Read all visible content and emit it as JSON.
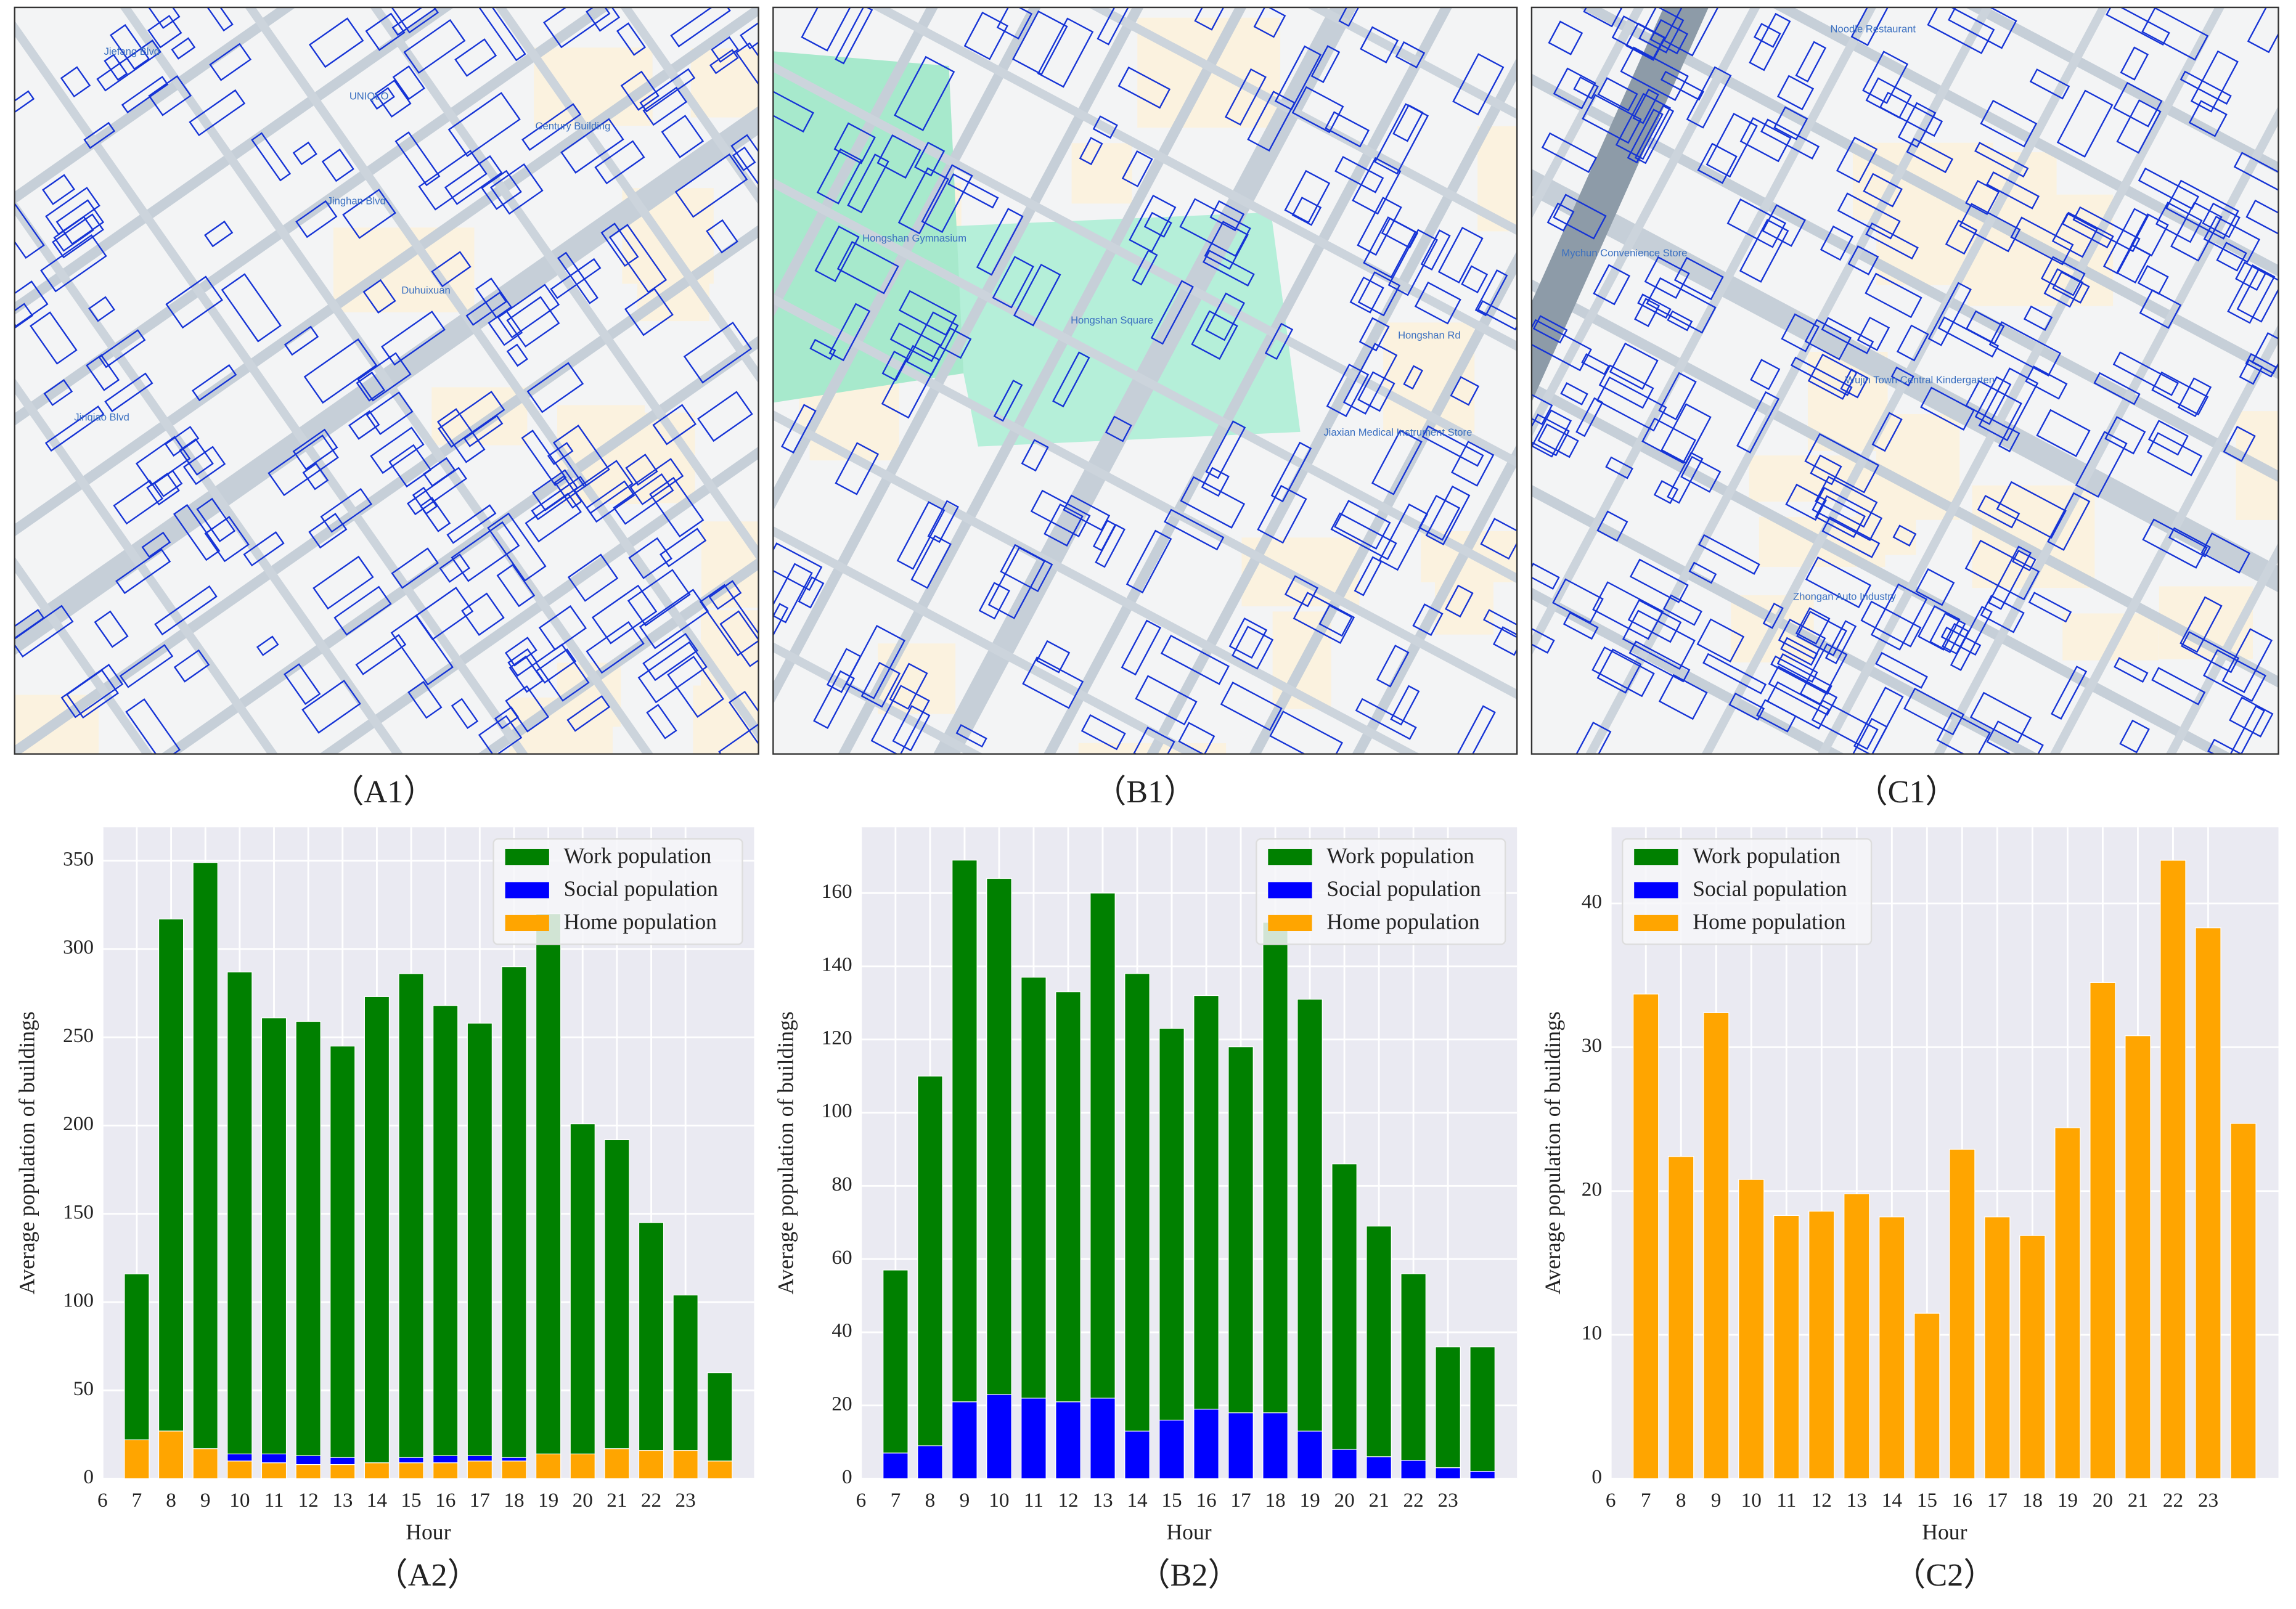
{
  "panels": [
    "（A1）",
    "（B1）",
    "（C1）",
    "（A2）",
    "（B2）",
    "（C2）"
  ],
  "maps": [
    {
      "labels": [
        "UNIQLO",
        "Jiefang Blvd",
        "Jinqiao Blvd",
        "Century Building",
        "Duhuixuan",
        "Jinghan Blvd"
      ]
    },
    {
      "labels": [
        "Hongshan Gymnasium",
        "Hongshan Square",
        "Hongshan Rd",
        "Jiaxian Medical Instrument Store"
      ]
    },
    {
      "labels": [
        "Mychun Convenience Store",
        "Noodle Restaurant",
        "Wujin Town Central Kindergarten",
        "Zhongan Auto Industry"
      ]
    }
  ],
  "chart_data": [
    {
      "type": "bar",
      "stacked": true,
      "xlabel": "Hour",
      "ylabel": "Average population of buildings",
      "x": [
        7,
        8,
        9,
        10,
        11,
        12,
        13,
        14,
        15,
        16,
        17,
        18,
        19,
        20,
        21,
        22,
        23,
        24
      ],
      "xlim": [
        6,
        25
      ],
      "xticks": [
        6,
        7,
        8,
        9,
        10,
        11,
        12,
        13,
        14,
        15,
        16,
        17,
        18,
        19,
        20,
        21,
        22,
        23
      ],
      "ylim": [
        0,
        369
      ],
      "yticks": [
        0,
        50,
        100,
        150,
        200,
        250,
        300,
        350
      ],
      "grid": true,
      "legend": "upper right",
      "series": [
        {
          "name": "Work population",
          "color": "#008000",
          "values": [
            94,
            290,
            332,
            273,
            247,
            246,
            233,
            264,
            274,
            255,
            245,
            278,
            306,
            187,
            175,
            129,
            88,
            50
          ]
        },
        {
          "name": "Social population",
          "color": "#0000ff",
          "values": [
            0,
            0,
            0,
            4,
            5,
            5,
            4,
            0,
            3,
            4,
            3,
            2,
            0,
            0,
            0,
            0,
            0,
            0
          ]
        },
        {
          "name": "Home population",
          "color": "#ffa500",
          "values": [
            22,
            27,
            17,
            10,
            9,
            8,
            8,
            9,
            9,
            9,
            10,
            10,
            14,
            14,
            17,
            16,
            16,
            10
          ]
        }
      ]
    },
    {
      "type": "bar",
      "stacked": true,
      "xlabel": "Hour",
      "ylabel": "Average population of buildings",
      "x": [
        7,
        8,
        9,
        10,
        11,
        12,
        13,
        14,
        15,
        16,
        17,
        18,
        19,
        20,
        21,
        22,
        23,
        24
      ],
      "xlim": [
        6,
        25
      ],
      "xticks": [
        6,
        7,
        8,
        9,
        10,
        11,
        12,
        13,
        14,
        15,
        16,
        17,
        18,
        19,
        20,
        21,
        22,
        23
      ],
      "ylim": [
        0,
        178
      ],
      "yticks": [
        0,
        20,
        40,
        60,
        80,
        100,
        120,
        140,
        160
      ],
      "grid": true,
      "legend": "upper right",
      "series": [
        {
          "name": "Work population",
          "color": "#008000",
          "values": [
            50,
            101,
            148,
            141,
            115,
            112,
            138,
            125,
            107,
            113,
            100,
            134,
            118,
            78,
            63,
            51,
            33,
            34
          ]
        },
        {
          "name": "Social population",
          "color": "#0000ff",
          "values": [
            7,
            9,
            21,
            23,
            22,
            21,
            22,
            13,
            16,
            19,
            18,
            18,
            13,
            8,
            6,
            5,
            3,
            2
          ]
        },
        {
          "name": "Home population",
          "color": "#ffa500",
          "values": [
            0,
            0,
            0,
            0,
            0,
            0,
            0,
            0,
            0,
            0,
            0,
            0,
            0,
            0,
            0,
            0,
            0,
            0
          ]
        }
      ]
    },
    {
      "type": "bar",
      "stacked": true,
      "xlabel": "Hour",
      "ylabel": "Average population of buildings",
      "x": [
        7,
        8,
        9,
        10,
        11,
        12,
        13,
        14,
        15,
        16,
        17,
        18,
        19,
        20,
        21,
        22,
        23,
        24
      ],
      "xlim": [
        6,
        25
      ],
      "xticks": [
        6,
        7,
        8,
        9,
        10,
        11,
        12,
        13,
        14,
        15,
        16,
        17,
        18,
        19,
        20,
        21,
        22,
        23
      ],
      "ylim": [
        0,
        45.3
      ],
      "yticks": [
        0,
        10,
        20,
        30,
        40
      ],
      "grid": true,
      "legend": "upper left",
      "series": [
        {
          "name": "Work population",
          "color": "#008000",
          "values": [
            0,
            0,
            0,
            0,
            0,
            0,
            0,
            0,
            0,
            0,
            0,
            0,
            0,
            0,
            0,
            0,
            0,
            0
          ]
        },
        {
          "name": "Social population",
          "color": "#0000ff",
          "values": [
            0,
            0,
            0,
            0,
            0,
            0,
            0,
            0,
            0,
            0,
            0,
            0,
            0,
            0,
            0,
            0,
            0,
            0
          ]
        },
        {
          "name": "Home population",
          "color": "#ffa500",
          "values": [
            33.7,
            22.4,
            32.4,
            20.8,
            18.3,
            18.6,
            19.8,
            18.2,
            11.5,
            22.9,
            18.2,
            16.9,
            24.4,
            34.5,
            30.8,
            43,
            38.3,
            24.7
          ]
        }
      ]
    }
  ]
}
